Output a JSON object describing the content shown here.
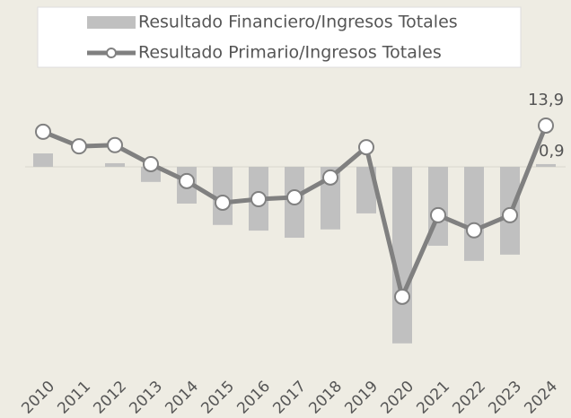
{
  "chart_data": {
    "type": "bar-line",
    "categories": [
      "2010",
      "2011",
      "2012",
      "2013",
      "2014",
      "2015",
      "2016",
      "2017",
      "2018",
      "2019",
      "2020",
      "2021",
      "2022",
      "2023",
      "2024"
    ],
    "series": [
      {
        "name": "Resultado Financiero/Ingresos Totales",
        "type": "bar",
        "color": "#c0c0c0",
        "values": [
          4.5,
          0,
          1.2,
          -5.1,
          -12.4,
          -19.6,
          -21.5,
          -23.9,
          -21.1,
          -15.7,
          -59.5,
          -26.6,
          -31.7,
          -29.6,
          0.9
        ],
        "value_labels": [
          null,
          null,
          null,
          null,
          null,
          null,
          null,
          null,
          null,
          null,
          null,
          null,
          null,
          null,
          "0,9"
        ]
      },
      {
        "name": "Resultado Primario/Ingresos Totales",
        "type": "line",
        "color": "#808080",
        "values": [
          11.8,
          6.9,
          7.3,
          0.9,
          -4.8,
          -12.1,
          -10.9,
          -10.3,
          -3.6,
          6.6,
          -43.8,
          -16.3,
          -21.4,
          -16.3,
          13.9
        ],
        "value_labels": [
          null,
          null,
          null,
          null,
          null,
          null,
          null,
          null,
          null,
          null,
          null,
          null,
          null,
          null,
          "13,9"
        ]
      }
    ],
    "ylim": [
      -65,
      29
    ]
  }
}
